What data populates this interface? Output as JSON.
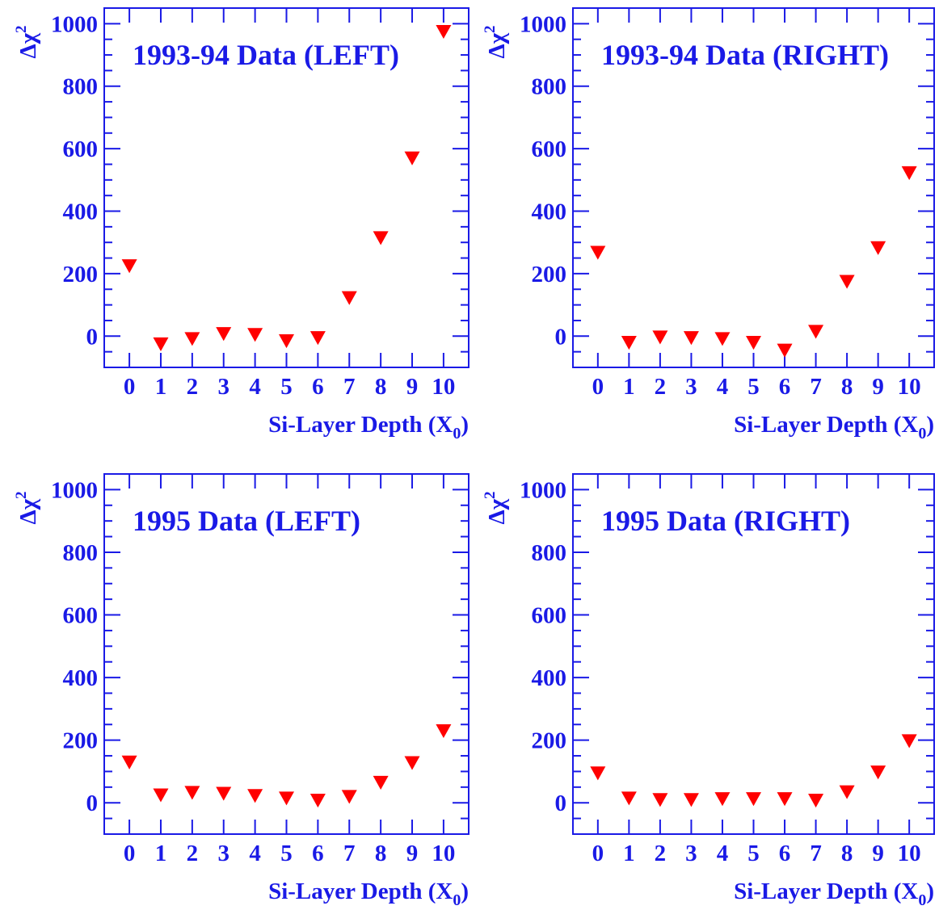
{
  "accent_color": "#1a1ae6",
  "marker_color": "#ff0000",
  "chart_data": [
    {
      "type": "scatter",
      "title": "1993-94 Data (LEFT)",
      "xlabel": "Si-Layer Depth (X",
      "xlabel_sub": "0",
      "xlabel_end": ")",
      "ylabel": "Δχ",
      "ylabel_sup": "2",
      "x": [
        0,
        1,
        2,
        3,
        4,
        5,
        6,
        7,
        8,
        9,
        10
      ],
      "y": [
        225,
        -25,
        -8,
        8,
        5,
        -15,
        -5,
        123,
        315,
        570,
        975
      ],
      "xlim": [
        -0.8,
        10.8
      ],
      "ylim": [
        -100,
        1050
      ],
      "yticks": [
        0,
        200,
        400,
        600,
        800,
        1000
      ],
      "xticks": [
        0,
        1,
        2,
        3,
        4,
        5,
        6,
        7,
        8,
        9,
        10
      ],
      "marker": "triangle-down",
      "grid": false
    },
    {
      "type": "scatter",
      "title": "1993-94 Data (RIGHT)",
      "xlabel": "Si-Layer Depth (X",
      "xlabel_sub": "0",
      "xlabel_end": ")",
      "ylabel": "Δχ",
      "ylabel_sup": "2",
      "x": [
        0,
        1,
        2,
        3,
        4,
        5,
        6,
        7,
        8,
        9,
        10
      ],
      "y": [
        268,
        -20,
        -3,
        -5,
        -8,
        -20,
        -45,
        15,
        175,
        283,
        523
      ],
      "xlim": [
        -0.8,
        10.8
      ],
      "ylim": [
        -100,
        1050
      ],
      "yticks": [
        0,
        200,
        400,
        600,
        800,
        1000
      ],
      "xticks": [
        0,
        1,
        2,
        3,
        4,
        5,
        6,
        7,
        8,
        9,
        10
      ],
      "marker": "triangle-down",
      "grid": false
    },
    {
      "type": "scatter",
      "title": "1995 Data (LEFT)",
      "xlabel": "Si-Layer Depth (X",
      "xlabel_sub": "0",
      "xlabel_end": ")",
      "ylabel": "Δχ",
      "ylabel_sup": "2",
      "x": [
        0,
        1,
        2,
        3,
        4,
        5,
        6,
        7,
        8,
        9,
        10
      ],
      "y": [
        130,
        25,
        33,
        30,
        23,
        15,
        8,
        20,
        65,
        128,
        230
      ],
      "xlim": [
        -0.8,
        10.8
      ],
      "ylim": [
        -100,
        1050
      ],
      "yticks": [
        0,
        200,
        400,
        600,
        800,
        1000
      ],
      "xticks": [
        0,
        1,
        2,
        3,
        4,
        5,
        6,
        7,
        8,
        9,
        10
      ],
      "marker": "triangle-down",
      "grid": false
    },
    {
      "type": "scatter",
      "title": "1995 Data (RIGHT)",
      "xlabel": "Si-Layer Depth (X",
      "xlabel_sub": "0",
      "xlabel_end": ")",
      "ylabel": "Δχ",
      "ylabel_sup": "2",
      "x": [
        0,
        1,
        2,
        3,
        4,
        5,
        6,
        7,
        8,
        9,
        10
      ],
      "y": [
        95,
        15,
        10,
        10,
        13,
        13,
        13,
        8,
        35,
        98,
        198
      ],
      "xlim": [
        -0.8,
        10.8
      ],
      "ylim": [
        -100,
        1050
      ],
      "yticks": [
        0,
        200,
        400,
        600,
        800,
        1000
      ],
      "xticks": [
        0,
        1,
        2,
        3,
        4,
        5,
        6,
        7,
        8,
        9,
        10
      ],
      "marker": "triangle-down",
      "grid": false
    }
  ]
}
